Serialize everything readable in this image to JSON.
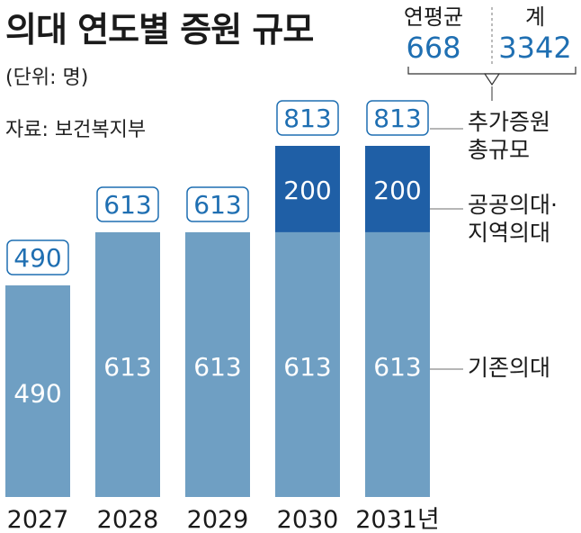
{
  "title": "의대 연도별 증원 규모",
  "unit": "(단위: 명)",
  "source": "자료: 보건복지부",
  "summary": {
    "annual_avg_label": "연평균",
    "annual_avg_value": "668",
    "total_label": "계",
    "total_value": "3342"
  },
  "colors": {
    "existing": "#6f9fc3",
    "public": "#1f5fa6",
    "accent": "#1f6fb2",
    "line": "#8a8a8a"
  },
  "chart_data": {
    "type": "bar",
    "stacked": true,
    "categories": [
      "2027",
      "2028",
      "2029",
      "2030",
      "2031년"
    ],
    "series": [
      {
        "name": "기존의대",
        "values": [
          490,
          613,
          613,
          613,
          613
        ]
      },
      {
        "name": "공공의대·지역의대",
        "values": [
          0,
          0,
          0,
          200,
          200
        ]
      }
    ],
    "totals": [
      490,
      613,
      613,
      813,
      813
    ],
    "total_label": "추가증원 총규모",
    "ylim": [
      0,
      813
    ],
    "grid": false,
    "legend": "right"
  },
  "legend_labels": {
    "total": [
      "추가증원",
      "총규모"
    ],
    "public": [
      "공공의대·",
      "지역의대"
    ],
    "existing": [
      "기존의대"
    ]
  }
}
